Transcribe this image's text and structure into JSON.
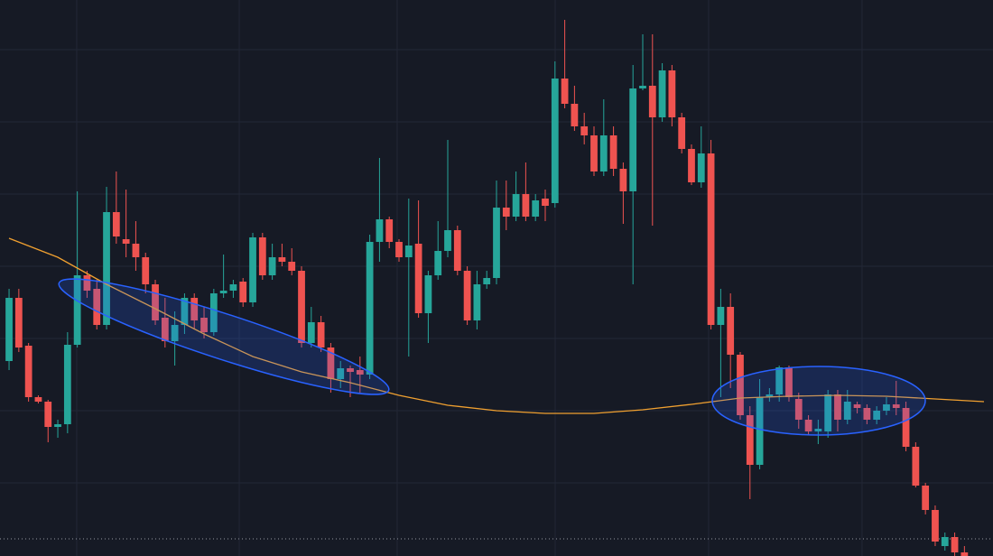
{
  "chart_data": {
    "type": "candlestick",
    "xlim": [
      -0.93,
      100.93
    ],
    "ylim": [
      0,
      616
    ],
    "xticks": [
      6.94,
      23.61,
      39.81,
      56.02,
      71.76,
      87.5
    ],
    "yticks": [
      561,
      481,
      401,
      321,
      241,
      161,
      81
    ],
    "grid": true,
    "up_color": "#26a69a",
    "down_color": "#ef5350",
    "price_line": 19,
    "price_line_color": "#9598a1",
    "candles": {
      "open": [
        216,
        286,
        233,
        176,
        171,
        143,
        146,
        234,
        311,
        296,
        256,
        381,
        351,
        346,
        331,
        301,
        264,
        238,
        256,
        286,
        264,
        248,
        291,
        294,
        304,
        281,
        353,
        311,
        331,
        326,
        316,
        236,
        259,
        231,
        196,
        208,
        206,
        201,
        348,
        373,
        348,
        331,
        346,
        269,
        311,
        338,
        361,
        316,
        261,
        301,
        308,
        386,
        376,
        401,
        376,
        396,
        391,
        529,
        501,
        476,
        466,
        426,
        466,
        429,
        404,
        518,
        521,
        486,
        538,
        486,
        451,
        414,
        446,
        256,
        276,
        223,
        156,
        101,
        176,
        179,
        209,
        174,
        151,
        138,
        138,
        179,
        151,
        168,
        164,
        151,
        161,
        168,
        164,
        121,
        78,
        51,
        11,
        21,
        4
      ],
      "high": [
        296,
        296,
        236,
        178,
        173,
        151,
        248,
        404,
        316,
        306,
        409,
        426,
        406,
        371,
        336,
        306,
        286,
        271,
        291,
        291,
        276,
        296,
        334,
        306,
        308,
        358,
        358,
        346,
        346,
        341,
        321,
        276,
        266,
        236,
        216,
        211,
        221,
        356,
        441,
        376,
        351,
        396,
        394,
        316,
        371,
        461,
        366,
        321,
        316,
        316,
        416,
        416,
        426,
        436,
        401,
        406,
        548,
        594,
        521,
        491,
        476,
        506,
        476,
        436,
        544,
        578,
        578,
        546,
        544,
        491,
        456,
        476,
        461,
        296,
        291,
        226,
        166,
        196,
        186,
        211,
        211,
        181,
        156,
        151,
        184,
        184,
        184,
        171,
        168,
        166,
        176,
        194,
        171,
        126,
        81,
        56,
        26,
        26,
        11
      ],
      "low": [
        206,
        226,
        171,
        169,
        126,
        131,
        136,
        231,
        286,
        251,
        251,
        346,
        331,
        316,
        291,
        256,
        231,
        211,
        246,
        251,
        241,
        244,
        286,
        286,
        276,
        276,
        306,
        306,
        321,
        311,
        231,
        231,
        226,
        181,
        186,
        176,
        181,
        196,
        326,
        341,
        326,
        221,
        264,
        236,
        306,
        331,
        311,
        256,
        251,
        296,
        301,
        361,
        371,
        371,
        371,
        371,
        386,
        496,
        471,
        456,
        421,
        421,
        421,
        368,
        301,
        516,
        366,
        481,
        476,
        446,
        411,
        408,
        251,
        176,
        186,
        151,
        63,
        96,
        171,
        171,
        171,
        141,
        134,
        124,
        131,
        138,
        146,
        158,
        146,
        146,
        156,
        156,
        116,
        76,
        46,
        11,
        6,
        0,
        0
      ],
      "close": [
        286,
        231,
        176,
        171,
        143,
        146,
        234,
        311,
        294,
        256,
        381,
        354,
        346,
        331,
        301,
        261,
        238,
        256,
        286,
        261,
        248,
        291,
        294,
        301,
        281,
        353,
        311,
        331,
        326,
        316,
        236,
        259,
        231,
        196,
        208,
        204,
        201,
        348,
        373,
        348,
        331,
        344,
        269,
        311,
        338,
        361,
        316,
        261,
        301,
        308,
        386,
        376,
        401,
        376,
        394,
        388,
        529,
        501,
        476,
        466,
        426,
        466,
        429,
        404,
        518,
        521,
        486,
        538,
        486,
        451,
        414,
        446,
        256,
        276,
        223,
        156,
        101,
        176,
        179,
        209,
        176,
        151,
        138,
        141,
        179,
        151,
        171,
        164,
        151,
        161,
        168,
        164,
        121,
        78,
        51,
        16,
        21,
        4,
        0
      ]
    },
    "lines": [
      {
        "color": "#f0a030",
        "x": [
          0,
          5,
          10,
          15,
          20,
          25,
          30,
          35,
          40,
          45,
          50,
          55,
          60,
          65,
          70,
          75,
          80,
          85,
          90,
          95,
          100
        ],
        "values": [
          352,
          331,
          301,
          274,
          246,
          221,
          204,
          192,
          178,
          167,
          161,
          158,
          158,
          162,
          168,
          175,
          177,
          178,
          177,
          174,
          171
        ]
      }
    ]
  }
}
